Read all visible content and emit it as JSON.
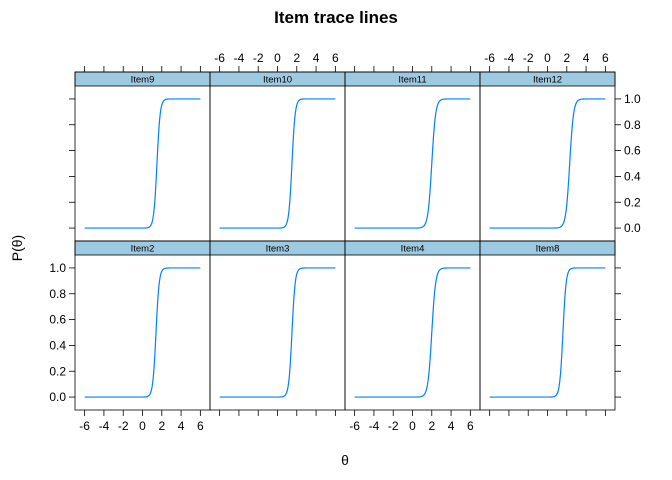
{
  "chart_data": {
    "type": "line",
    "title": "Item trace lines",
    "xlabel": "θ",
    "ylabel": "P(θ)",
    "xlim": [
      -7,
      7
    ],
    "ylim": [
      -0.1,
      1.1
    ],
    "x_ticks": [
      -6,
      -4,
      -2,
      0,
      2,
      4,
      6
    ],
    "x_tick_labels": [
      "-6",
      "-4",
      "-2",
      "0",
      "2",
      "4",
      "6"
    ],
    "y_ticks": [
      0,
      0.2,
      0.4,
      0.6,
      0.8,
      1
    ],
    "y_tick_labels": [
      "0.0",
      "0.2",
      "0.4",
      "0.6",
      "0.8",
      "1.0"
    ],
    "line_color": "#0080ff",
    "strip_color": "#9ecae1",
    "layout": {
      "columns": 4,
      "rows": 2
    },
    "x_range": [
      -6,
      6
    ],
    "panels": [
      {
        "name": "Item9",
        "row": 0,
        "col": 0,
        "difficulty": 1.5,
        "discrimination": 6
      },
      {
        "name": "Item10",
        "row": 0,
        "col": 1,
        "difficulty": 1.5,
        "discrimination": 6
      },
      {
        "name": "Item11",
        "row": 0,
        "col": 2,
        "difficulty": 2.0,
        "discrimination": 5
      },
      {
        "name": "Item12",
        "row": 0,
        "col": 3,
        "difficulty": 2.3,
        "discrimination": 5
      },
      {
        "name": "Item2",
        "row": 1,
        "col": 0,
        "difficulty": 1.4,
        "discrimination": 6
      },
      {
        "name": "Item3",
        "row": 1,
        "col": 1,
        "difficulty": 1.5,
        "discrimination": 6
      },
      {
        "name": "Item4",
        "row": 1,
        "col": 2,
        "difficulty": 2.0,
        "discrimination": 5
      },
      {
        "name": "Item8",
        "row": 1,
        "col": 3,
        "difficulty": 1.6,
        "discrimination": 6
      }
    ]
  }
}
